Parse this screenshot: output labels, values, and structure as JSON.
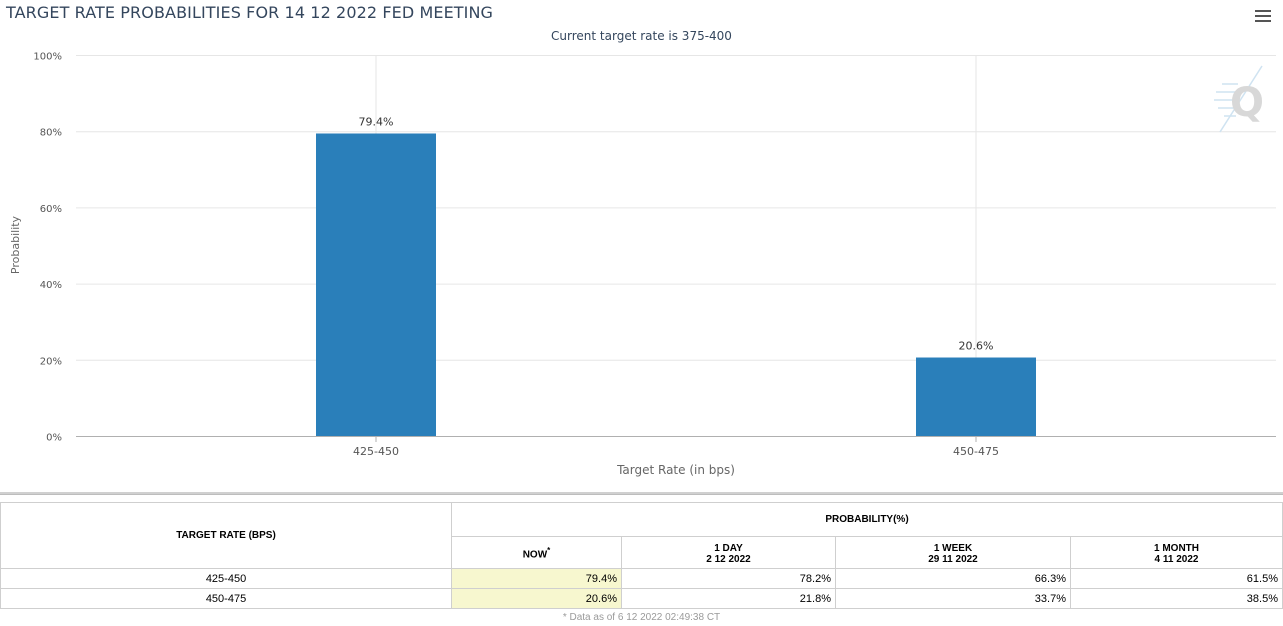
{
  "header": {
    "title": "TARGET RATE PROBABILITIES FOR 14 12 2022 FED MEETING",
    "subtitle": "Current target rate is 375-400",
    "menu_icon": "hamburger-menu-icon",
    "watermark_icon": "quikstrike-q-logo-icon"
  },
  "chart_data": {
    "type": "bar",
    "title": "TARGET RATE PROBABILITIES FOR 14 12 2022 FED MEETING",
    "subtitle": "Current target rate is 375-400",
    "categories": [
      "425-450",
      "450-475"
    ],
    "values": [
      79.4,
      20.6
    ],
    "data_labels": [
      "79.4%",
      "20.6%"
    ],
    "xlabel": "Target Rate (in bps)",
    "ylabel": "Probability",
    "ylim": [
      0,
      100
    ],
    "yticks": [
      0,
      20,
      40,
      60,
      80,
      100
    ],
    "ytick_labels": [
      "0%",
      "20%",
      "40%",
      "60%",
      "80%",
      "100%"
    ],
    "grid": true,
    "legend": "none",
    "bar_color": "#2a7fba"
  },
  "table": {
    "target_header": "TARGET RATE (BPS)",
    "prob_header": "PROBABILITY(%)",
    "columns": [
      {
        "label": "NOW",
        "sup": "*",
        "date": ""
      },
      {
        "label": "1 DAY",
        "date": "2 12 2022"
      },
      {
        "label": "1 WEEK",
        "date": "29 11 2022"
      },
      {
        "label": "1 MONTH",
        "date": "4 11 2022"
      }
    ],
    "rows": [
      {
        "target": "425-450",
        "now": "79.4%",
        "day": "78.2%",
        "week": "66.3%",
        "month": "61.5%"
      },
      {
        "target": "450-475",
        "now": "20.6%",
        "day": "21.8%",
        "week": "33.7%",
        "month": "38.5%"
      }
    ],
    "now_highlight": "#f7f7cf"
  },
  "footnote": "* Data as of 6 12 2022 02:49:38 CT"
}
